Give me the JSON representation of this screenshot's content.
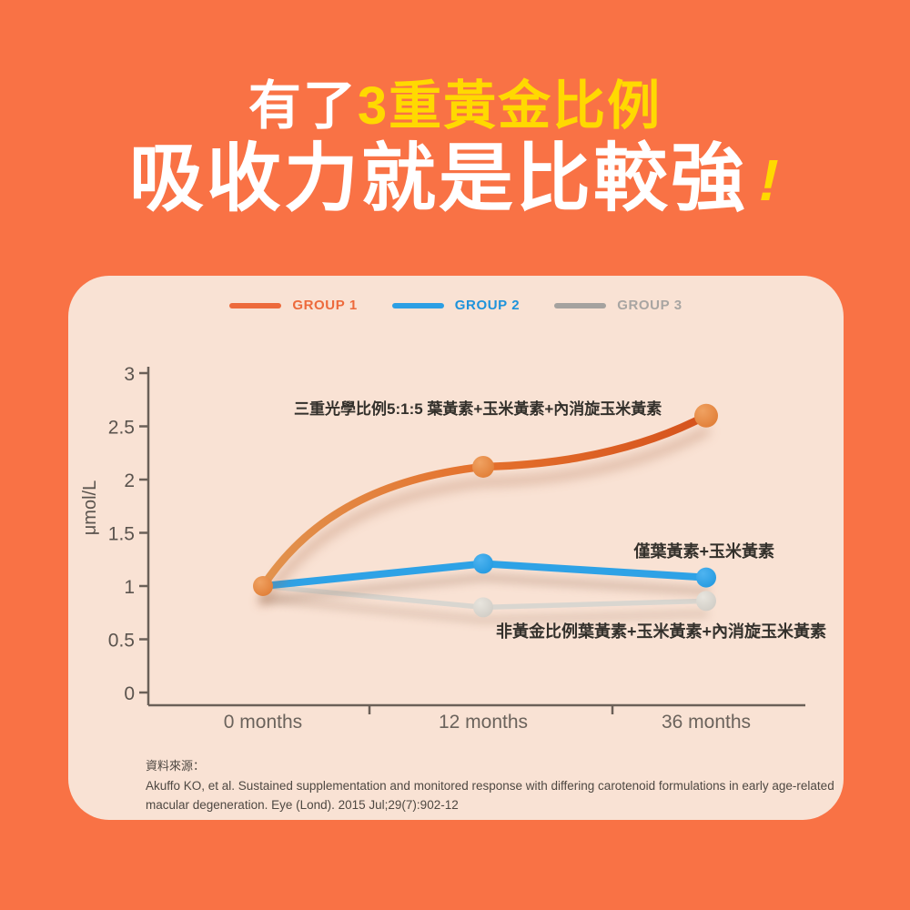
{
  "page": {
    "background_color": "#F97245",
    "panel_color": "#F9E2D4"
  },
  "title": {
    "line1_prefix": "有了",
    "line1_highlight": "3重黃金比例",
    "line2_text": "吸收力就是比較強",
    "line2_exclamation": "!",
    "highlight_color": "#FFD900",
    "text_color": "#FFFFFF"
  },
  "legend": {
    "items": [
      {
        "label": "GROUP 1",
        "swatch_color": "#ED6A3C",
        "text_color": "#ED6A3C"
      },
      {
        "label": "GROUP 2",
        "swatch_color": "#2C9FE4",
        "text_color": "#1E93DB"
      },
      {
        "label": "GROUP 3",
        "swatch_color": "#A5A29F",
        "text_color": "#A8A5A2"
      }
    ]
  },
  "chart_data": {
    "type": "line",
    "categories": [
      "0 months",
      "12 months",
      "36 months"
    ],
    "ylabel": "μmol/L",
    "yticks": [
      0,
      0.5,
      1,
      1.5,
      2,
      2.5,
      3
    ],
    "ylim": [
      0,
      3
    ],
    "grid": false,
    "legend_position": "top",
    "axis_color": "#6B6058",
    "tick_label_color": "#5B544E",
    "category_label_color": "#6B635C",
    "annotation_color": "#33302B",
    "series": [
      {
        "name": "GROUP 1",
        "values": [
          1.0,
          2.12,
          2.6
        ],
        "curved": true,
        "line_width": 8.5,
        "gradient": [
          "#E2934E",
          "#E4702C",
          "#D5521C"
        ],
        "marker_colors": [
          "#F0A262",
          "#DE7830"
        ],
        "annotation": "三重光學比例5:1:5  葉黃素+玉米黃素+內消旋玉米黃素"
      },
      {
        "name": "GROUP 2",
        "values": [
          1.0,
          1.21,
          1.08
        ],
        "curved": false,
        "line_width": 8,
        "gradient": [
          "#2EA2E6",
          "#2EA2E6",
          "#2EA2E6"
        ],
        "marker_colors": [
          "#4FB4F0",
          "#1E96DE"
        ],
        "annotation": "僅葉黃素+玉米黃素"
      },
      {
        "name": "GROUP 3",
        "values": [
          1.0,
          0.8,
          0.86
        ],
        "curved": false,
        "line_width": 5.5,
        "gradient": [
          "#D9D6D0",
          "#D9D6D0",
          "#D9D6D0"
        ],
        "marker_colors": [
          "#E8E5DE",
          "#CDC9C2"
        ],
        "annotation": "非黃金比例葉黃素+玉米黃素+內消旋玉米黃素"
      }
    ]
  },
  "source": {
    "label": "資料來源：",
    "line1": "Akuffo KO, et al. Sustained supplementation and monitored response with differing carotenoid formulations in early age-related",
    "line2": "macular degeneration. Eye (Lond). 2015 Jul;29(7):902-12"
  }
}
